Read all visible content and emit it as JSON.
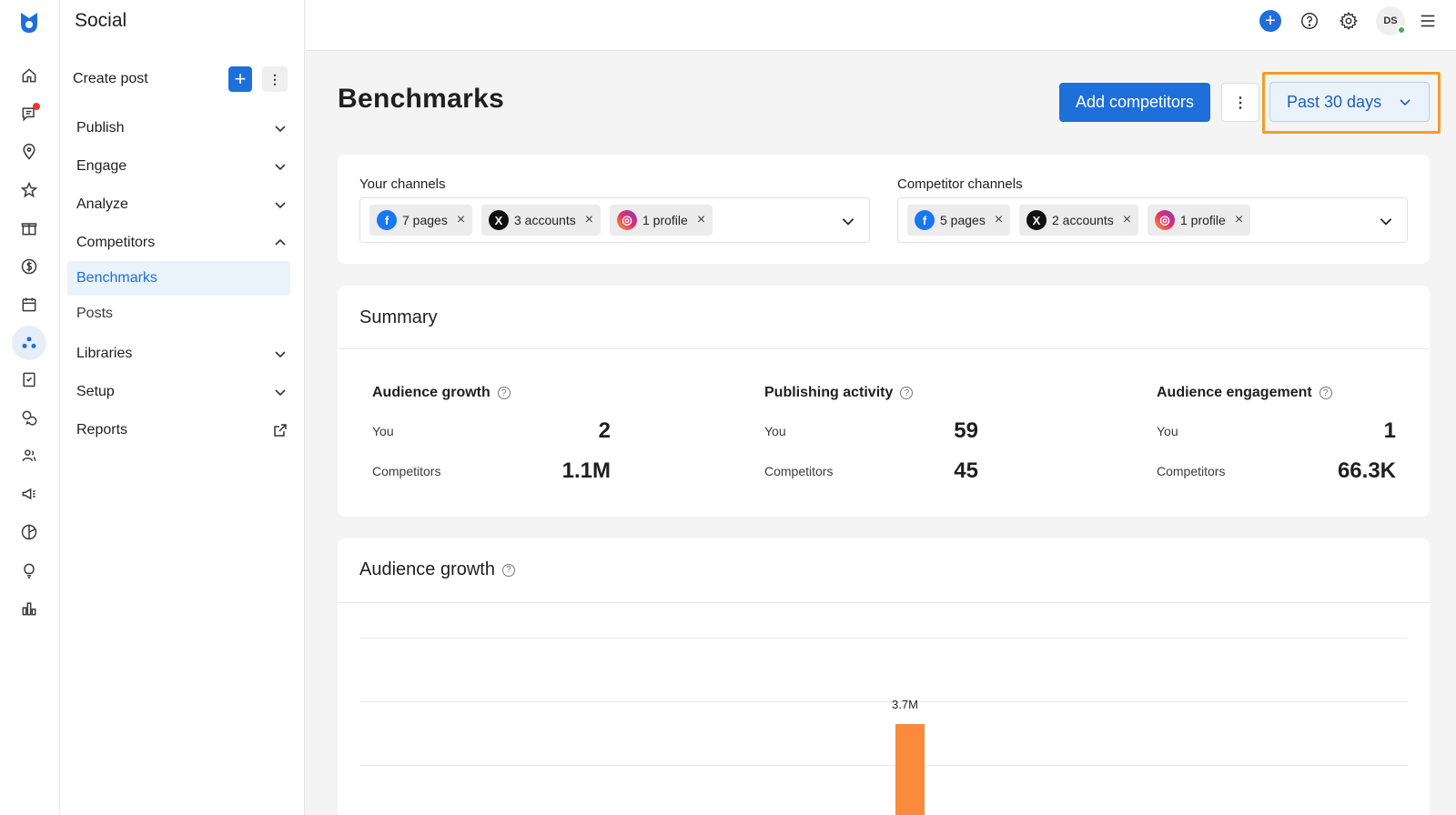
{
  "app": {
    "title": "Social"
  },
  "rail": {
    "icons": [
      "home-icon",
      "messages-icon",
      "location-pin-icon",
      "star-icon",
      "gift-icon",
      "dollar-icon",
      "calendar-icon",
      "social-icon",
      "checklist-icon",
      "chat-bubbles-icon",
      "users-icon",
      "megaphone-icon",
      "globe-icon",
      "lightbulb-icon",
      "bar-chart-icon"
    ],
    "active": "social-icon"
  },
  "nav": {
    "create_post": "Create post",
    "items": [
      {
        "label": "Publish"
      },
      {
        "label": "Engage"
      },
      {
        "label": "Analyze"
      },
      {
        "label": "Competitors"
      },
      {
        "label": "Libraries"
      },
      {
        "label": "Setup"
      },
      {
        "label": "Reports"
      }
    ],
    "sub_items": [
      {
        "label": "Benchmarks",
        "active": true
      },
      {
        "label": "Posts"
      }
    ]
  },
  "topbar": {
    "avatar_initials": "DS"
  },
  "page": {
    "title": "Benchmarks",
    "add_competitors": "Add competitors",
    "date_range": "Past 30 days"
  },
  "channels": {
    "yours": {
      "label": "Your channels",
      "chips": [
        {
          "network": "facebook",
          "text": "7 pages"
        },
        {
          "network": "x",
          "text": "3 accounts"
        },
        {
          "network": "instagram",
          "text": "1 profile"
        }
      ]
    },
    "competitors": {
      "label": "Competitor channels",
      "chips": [
        {
          "network": "facebook",
          "text": "5 pages"
        },
        {
          "network": "x",
          "text": "2 accounts"
        },
        {
          "network": "instagram",
          "text": "1 profile"
        }
      ]
    }
  },
  "summary": {
    "title": "Summary",
    "metrics": [
      {
        "title": "Audience growth",
        "you_label": "You",
        "you": "2",
        "comp_label": "Competitors",
        "comp": "1.1M"
      },
      {
        "title": "Publishing activity",
        "you_label": "You",
        "you": "59",
        "comp_label": "Competitors",
        "comp": "45"
      },
      {
        "title": "Audience engagement",
        "you_label": "You",
        "you": "1",
        "comp_label": "Competitors",
        "comp": "66.3K"
      }
    ]
  },
  "audience_growth": {
    "title": "Audience growth"
  },
  "chart_data": {
    "type": "bar",
    "title": "Audience growth",
    "series": [
      {
        "values": [
          3700000
        ],
        "color": "#fb8a3c"
      }
    ],
    "data_labels": [
      "3.7M"
    ]
  },
  "colors": {
    "primary": "#1e6fd9",
    "highlight": "#f59b28",
    "bar": "#fb8a3c"
  }
}
